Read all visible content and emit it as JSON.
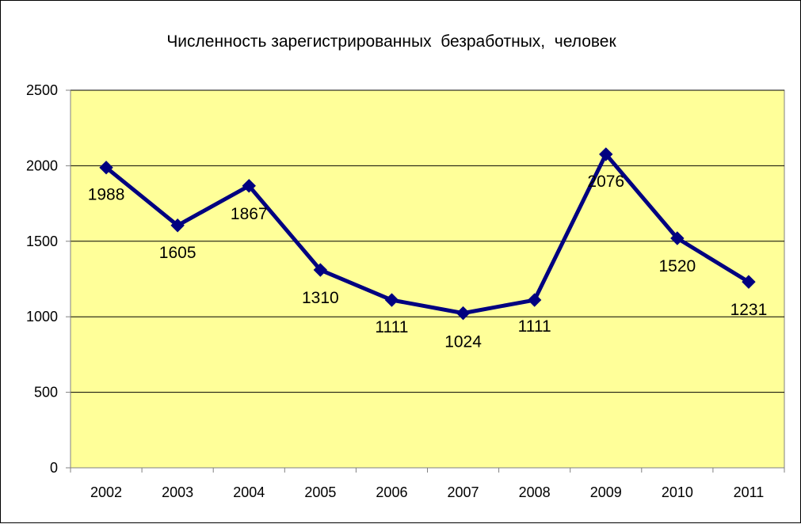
{
  "chart_data": {
    "type": "line",
    "title": "Численность зарегистрированных  безработных,  человек",
    "xlabel": "",
    "ylabel": "",
    "categories": [
      "2002",
      "2003",
      "2004",
      "2005",
      "2006",
      "2007",
      "2008",
      "2009",
      "2010",
      "2011"
    ],
    "series": [
      {
        "values": [
          1988,
          1605,
          1867,
          1310,
          1111,
          1024,
          1111,
          2076,
          1520,
          1231
        ],
        "color": "#000080",
        "marker": "diamond",
        "data_labels": [
          "1988",
          "1605",
          "1867",
          "1310",
          "1111",
          "1024",
          "1111",
          "2076",
          "1520",
          "1231"
        ]
      }
    ],
    "ylim": [
      0,
      2500
    ],
    "yticks": [
      "0",
      "500",
      "1000",
      "1500",
      "2000",
      "2500"
    ],
    "yticks_values": [
      0,
      500,
      1000,
      1500,
      2000,
      2500
    ],
    "grid": "horizontal",
    "legend": "none",
    "plot_background": "#FFFF99",
    "line_color": "#000080"
  }
}
